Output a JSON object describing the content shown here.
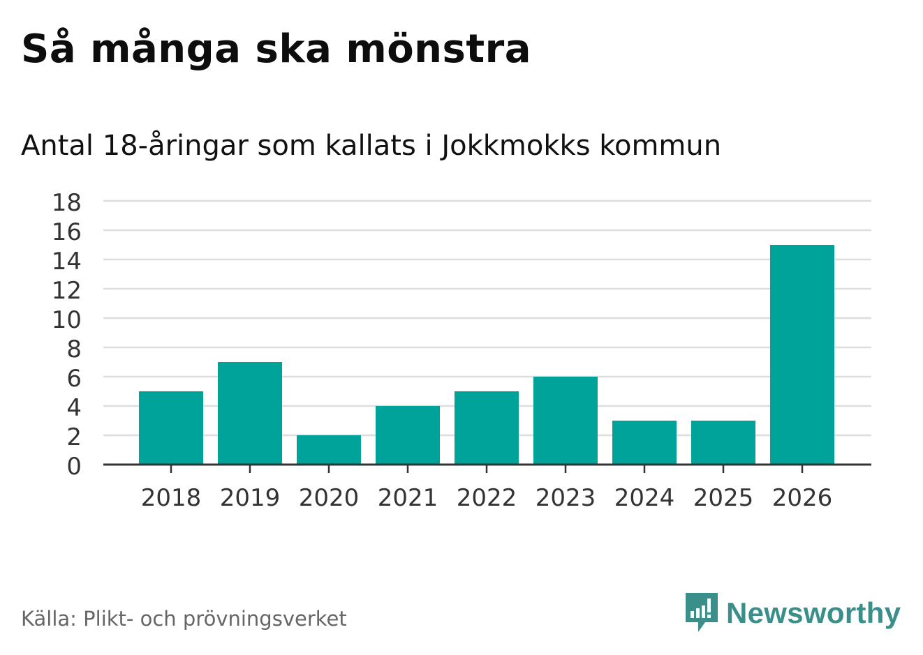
{
  "title": "Så många ska mönstra",
  "subtitle": "Antal 18-åringar som kallats i Jokkmokks kommun",
  "source": "Källa: Plikt- och prövningsverket",
  "brand": {
    "name": "Newsworthy",
    "color": "#3a8f8a"
  },
  "colors": {
    "bar": "#00a39a",
    "grid": "#dddddd",
    "axis": "#333333"
  },
  "chart_data": {
    "type": "bar",
    "categories": [
      "2018",
      "2019",
      "2020",
      "2021",
      "2022",
      "2023",
      "2024",
      "2025",
      "2026"
    ],
    "values": [
      5,
      7,
      2,
      4,
      5,
      6,
      3,
      3,
      15
    ],
    "yticks": [
      "0",
      "2",
      "4",
      "6",
      "8",
      "10",
      "12",
      "14",
      "16",
      "18"
    ],
    "ylim": [
      0,
      18
    ],
    "title": "Så många ska mönstra",
    "subtitle": "Antal 18-åringar som kallats i Jokkmokks kommun",
    "xlabel": "",
    "ylabel": "",
    "grid": true
  }
}
